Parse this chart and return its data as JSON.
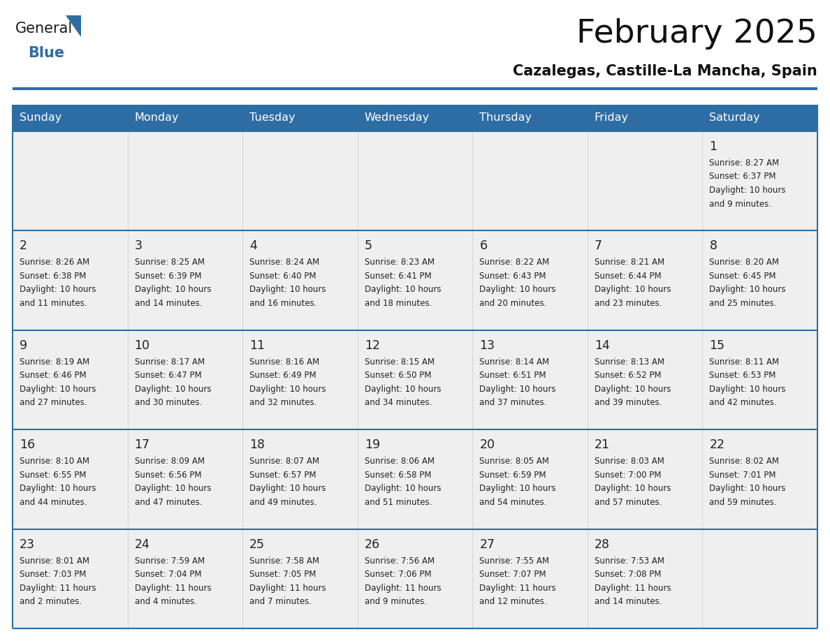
{
  "title": "February 2025",
  "subtitle": "Cazalegas, Castille-La Mancha, Spain",
  "days_of_week": [
    "Sunday",
    "Monday",
    "Tuesday",
    "Wednesday",
    "Thursday",
    "Friday",
    "Saturday"
  ],
  "header_bg": "#2E6DA4",
  "header_text": "#FFFFFF",
  "cell_bg": "#EFEFEF",
  "border_color": "#2E6DA4",
  "day_number_color": "#222222",
  "text_color": "#222222",
  "logo_general_color": "#1a1a1a",
  "logo_blue_color": "#2E6DA4",
  "calendar": [
    [
      null,
      null,
      null,
      null,
      null,
      null,
      {
        "day": 1,
        "sunrise": "8:27 AM",
        "sunset": "6:37 PM",
        "daylight": "10 hours and 9 minutes."
      }
    ],
    [
      {
        "day": 2,
        "sunrise": "8:26 AM",
        "sunset": "6:38 PM",
        "daylight": "10 hours and 11 minutes."
      },
      {
        "day": 3,
        "sunrise": "8:25 AM",
        "sunset": "6:39 PM",
        "daylight": "10 hours and 14 minutes."
      },
      {
        "day": 4,
        "sunrise": "8:24 AM",
        "sunset": "6:40 PM",
        "daylight": "10 hours and 16 minutes."
      },
      {
        "day": 5,
        "sunrise": "8:23 AM",
        "sunset": "6:41 PM",
        "daylight": "10 hours and 18 minutes."
      },
      {
        "day": 6,
        "sunrise": "8:22 AM",
        "sunset": "6:43 PM",
        "daylight": "10 hours and 20 minutes."
      },
      {
        "day": 7,
        "sunrise": "8:21 AM",
        "sunset": "6:44 PM",
        "daylight": "10 hours and 23 minutes."
      },
      {
        "day": 8,
        "sunrise": "8:20 AM",
        "sunset": "6:45 PM",
        "daylight": "10 hours and 25 minutes."
      }
    ],
    [
      {
        "day": 9,
        "sunrise": "8:19 AM",
        "sunset": "6:46 PM",
        "daylight": "10 hours and 27 minutes."
      },
      {
        "day": 10,
        "sunrise": "8:17 AM",
        "sunset": "6:47 PM",
        "daylight": "10 hours and 30 minutes."
      },
      {
        "day": 11,
        "sunrise": "8:16 AM",
        "sunset": "6:49 PM",
        "daylight": "10 hours and 32 minutes."
      },
      {
        "day": 12,
        "sunrise": "8:15 AM",
        "sunset": "6:50 PM",
        "daylight": "10 hours and 34 minutes."
      },
      {
        "day": 13,
        "sunrise": "8:14 AM",
        "sunset": "6:51 PM",
        "daylight": "10 hours and 37 minutes."
      },
      {
        "day": 14,
        "sunrise": "8:13 AM",
        "sunset": "6:52 PM",
        "daylight": "10 hours and 39 minutes."
      },
      {
        "day": 15,
        "sunrise": "8:11 AM",
        "sunset": "6:53 PM",
        "daylight": "10 hours and 42 minutes."
      }
    ],
    [
      {
        "day": 16,
        "sunrise": "8:10 AM",
        "sunset": "6:55 PM",
        "daylight": "10 hours and 44 minutes."
      },
      {
        "day": 17,
        "sunrise": "8:09 AM",
        "sunset": "6:56 PM",
        "daylight": "10 hours and 47 minutes."
      },
      {
        "day": 18,
        "sunrise": "8:07 AM",
        "sunset": "6:57 PM",
        "daylight": "10 hours and 49 minutes."
      },
      {
        "day": 19,
        "sunrise": "8:06 AM",
        "sunset": "6:58 PM",
        "daylight": "10 hours and 51 minutes."
      },
      {
        "day": 20,
        "sunrise": "8:05 AM",
        "sunset": "6:59 PM",
        "daylight": "10 hours and 54 minutes."
      },
      {
        "day": 21,
        "sunrise": "8:03 AM",
        "sunset": "7:00 PM",
        "daylight": "10 hours and 57 minutes."
      },
      {
        "day": 22,
        "sunrise": "8:02 AM",
        "sunset": "7:01 PM",
        "daylight": "10 hours and 59 minutes."
      }
    ],
    [
      {
        "day": 23,
        "sunrise": "8:01 AM",
        "sunset": "7:03 PM",
        "daylight": "11 hours and 2 minutes."
      },
      {
        "day": 24,
        "sunrise": "7:59 AM",
        "sunset": "7:04 PM",
        "daylight": "11 hours and 4 minutes."
      },
      {
        "day": 25,
        "sunrise": "7:58 AM",
        "sunset": "7:05 PM",
        "daylight": "11 hours and 7 minutes."
      },
      {
        "day": 26,
        "sunrise": "7:56 AM",
        "sunset": "7:06 PM",
        "daylight": "11 hours and 9 minutes."
      },
      {
        "day": 27,
        "sunrise": "7:55 AM",
        "sunset": "7:07 PM",
        "daylight": "11 hours and 12 minutes."
      },
      {
        "day": 28,
        "sunrise": "7:53 AM",
        "sunset": "7:08 PM",
        "daylight": "11 hours and 14 minutes."
      },
      null
    ]
  ]
}
